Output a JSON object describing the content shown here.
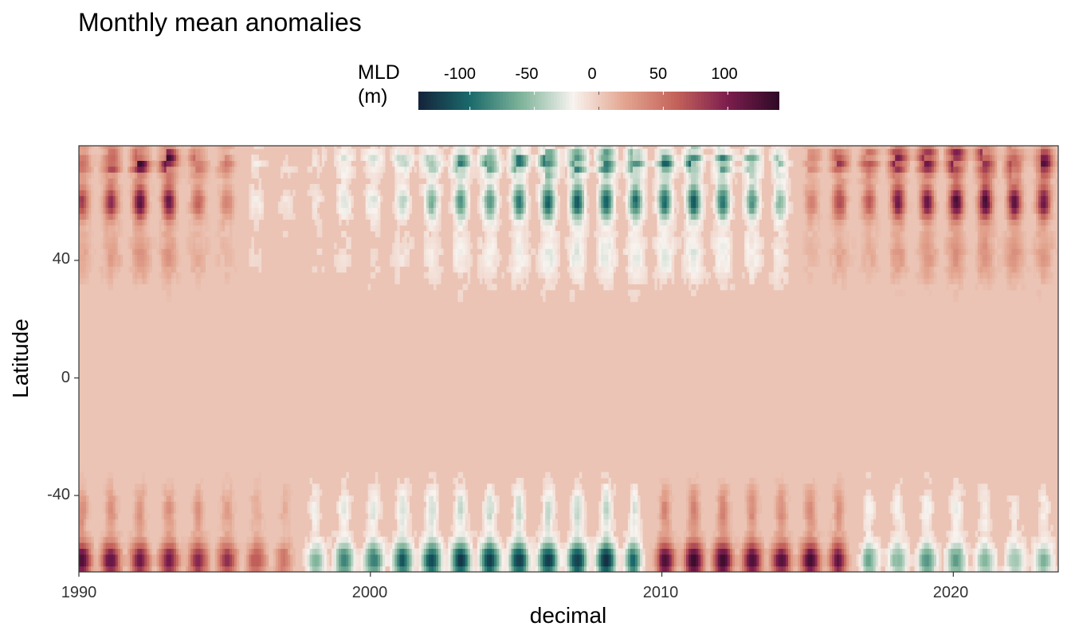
{
  "chart_data": {
    "type": "heatmap",
    "title": "Monthly mean anomalies",
    "xlabel": "decimal",
    "ylabel": "Latitude",
    "xlim": [
      1990,
      2023.6
    ],
    "ylim": [
      -66,
      79
    ],
    "x_ticks": [
      "1990",
      "2000",
      "2010",
      "2020"
    ],
    "y_ticks": [
      "40",
      "0",
      "-40"
    ],
    "legend": {
      "title": "MLD\n(m)",
      "ticks": [
        "-100",
        "-50",
        "0",
        "50",
        "100"
      ],
      "range": [
        -140,
        140
      ],
      "position": "top"
    },
    "colormap": [
      "#15233a",
      "#1a6a6b",
      "#7fb49a",
      "#f8f3ef",
      "#e3a58f",
      "#c4625a",
      "#7c1d4e",
      "#2e0a26"
    ],
    "grid": false,
    "annual_peaks_north": {
      "years": [
        1990,
        1991,
        1992,
        1993,
        1994,
        1995,
        1996,
        1997,
        1998,
        1999,
        2000,
        2001,
        2002,
        2003,
        2004,
        2005,
        2006,
        2007,
        2008,
        2009,
        2010,
        2011,
        2012,
        2013,
        2014,
        2015,
        2016,
        2017,
        2018,
        2019,
        2020,
        2021,
        2022,
        2023
      ],
      "value_at_60N": [
        80,
        90,
        120,
        120,
        60,
        50,
        -20,
        -10,
        -10,
        -30,
        -30,
        -40,
        -60,
        -80,
        -80,
        -90,
        -110,
        -110,
        -110,
        -100,
        -100,
        -110,
        -100,
        -80,
        -70,
        40,
        80,
        60,
        110,
        110,
        130,
        130,
        120,
        110
      ]
    },
    "annual_peaks_south": {
      "years": [
        1990,
        1991,
        1992,
        1993,
        1994,
        1995,
        1996,
        1997,
        1998,
        1999,
        2000,
        2001,
        2002,
        2003,
        2004,
        2005,
        2006,
        2007,
        2008,
        2009,
        2010,
        2011,
        2012,
        2013,
        2014,
        2015,
        2016,
        2017,
        2018,
        2019,
        2020,
        2021,
        2022,
        2023
      ],
      "value_at_60S": [
        130,
        120,
        110,
        110,
        100,
        90,
        70,
        60,
        -60,
        -90,
        -90,
        -110,
        -120,
        -130,
        -130,
        -130,
        -130,
        -130,
        -140,
        -120,
        130,
        140,
        140,
        130,
        120,
        130,
        130,
        -70,
        -60,
        -80,
        -80,
        -60,
        -50,
        -60
      ]
    }
  }
}
